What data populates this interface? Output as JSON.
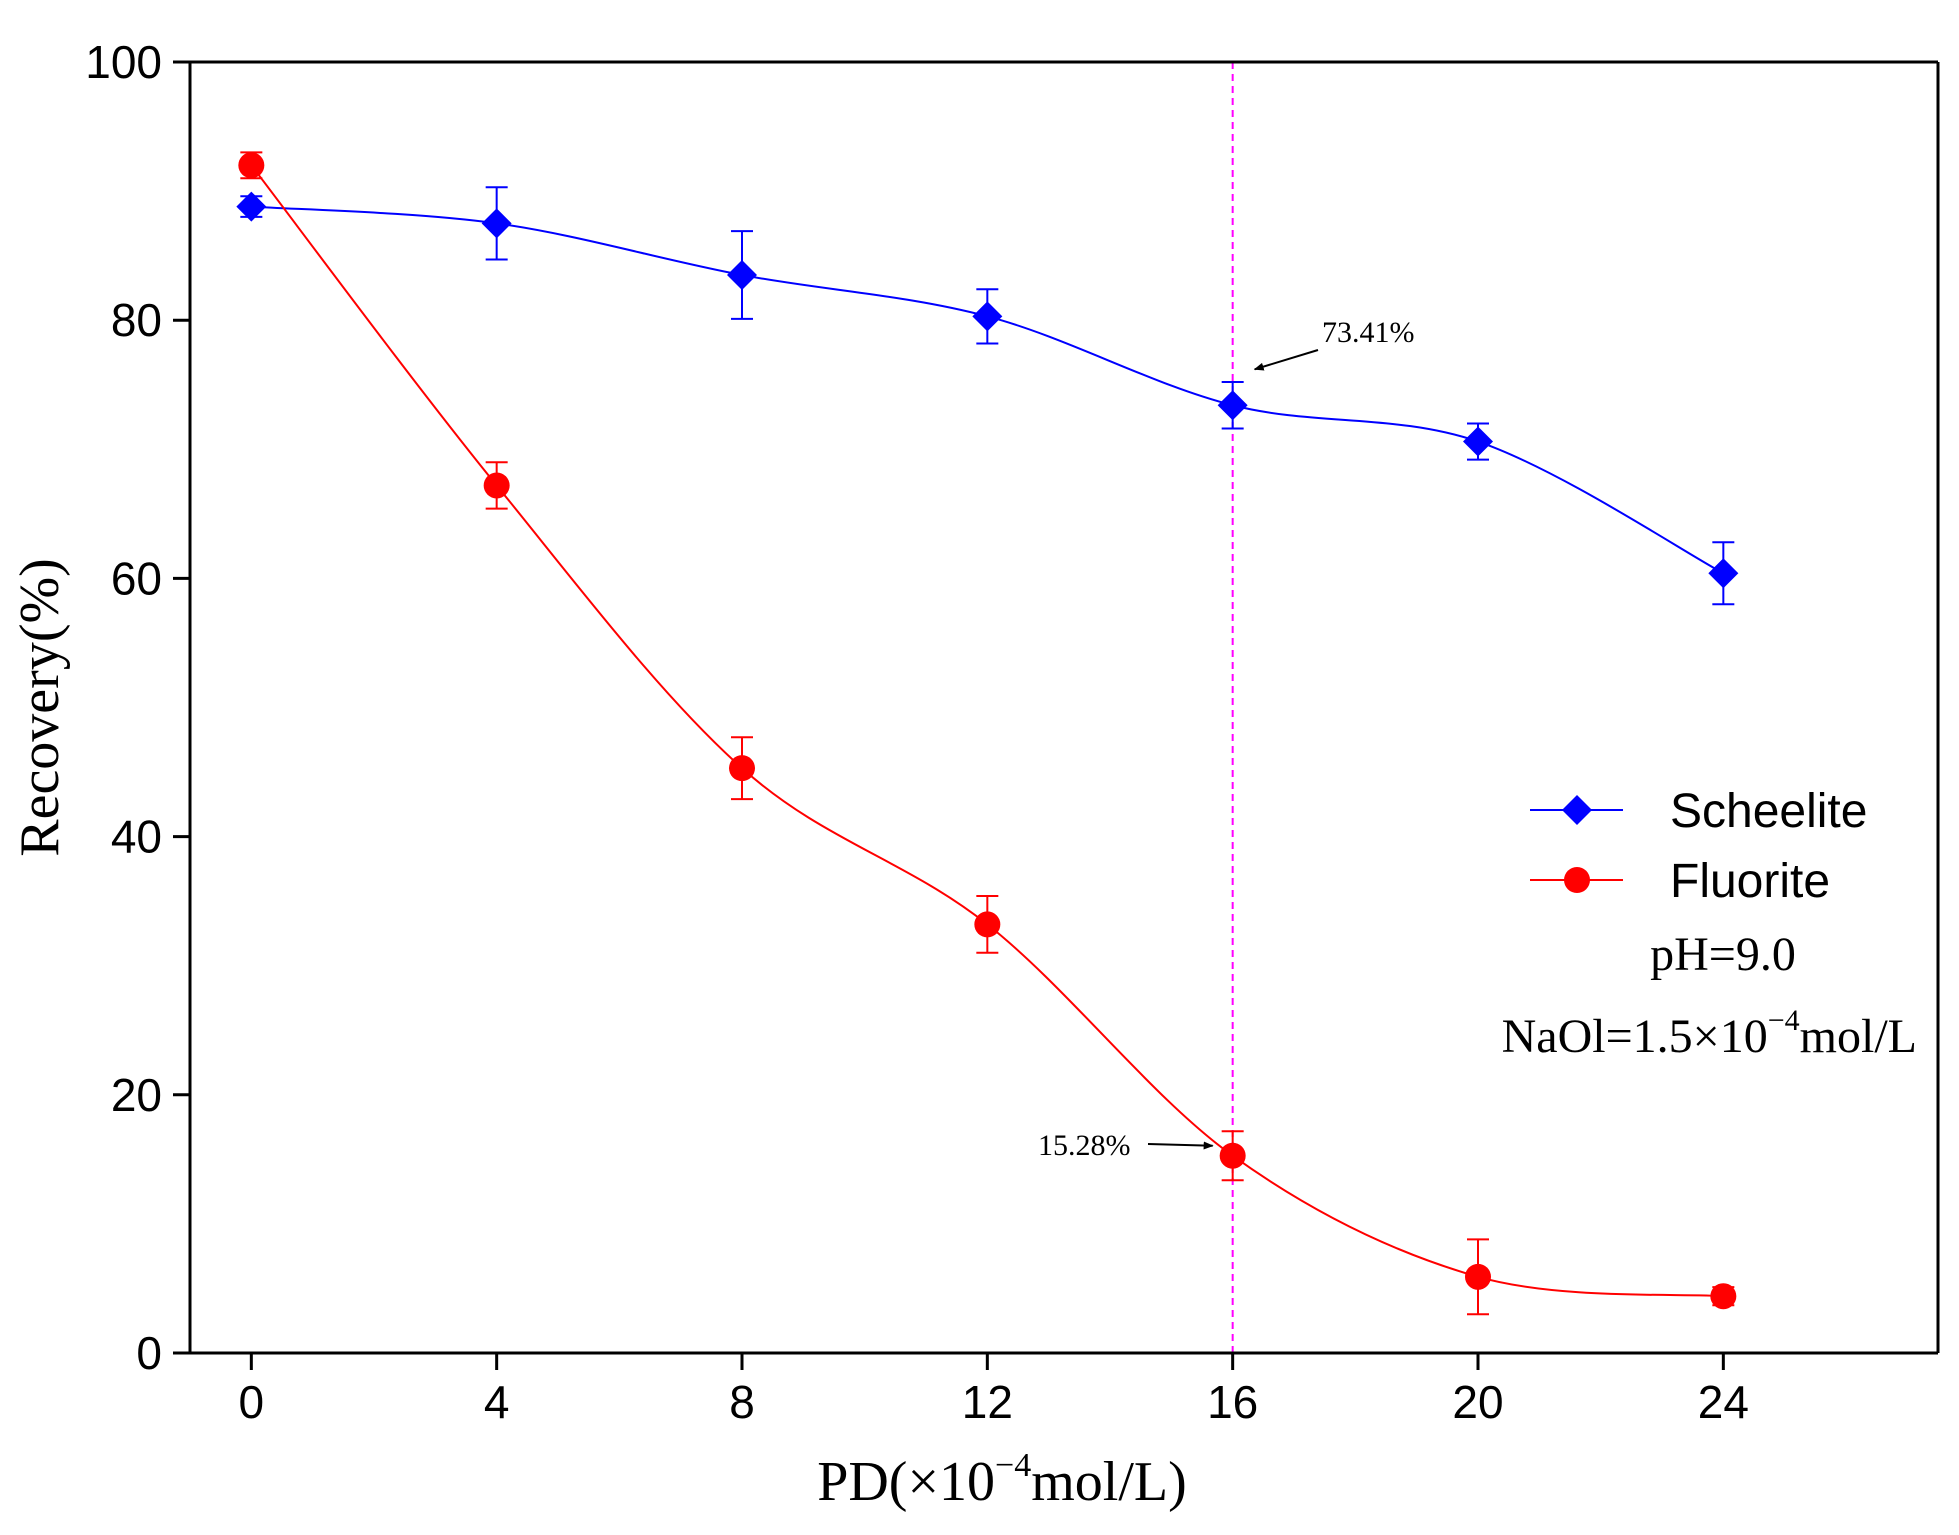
{
  "chart_data": {
    "type": "line",
    "title": "",
    "xlabel": "PD(×10⁻⁴mol/L)",
    "xlabel_parts": {
      "pre": "PD(×10",
      "sup": "−4",
      "post": "mol/L)"
    },
    "ylabel": "Recovery(%)",
    "x": [
      0,
      4,
      8,
      12,
      16,
      20,
      24
    ],
    "xlim": [
      -1,
      27.5
    ],
    "ylim": [
      0,
      100
    ],
    "xticks": [
      "0",
      "4",
      "8",
      "12",
      "16",
      "20",
      "24"
    ],
    "yticks": [
      "0",
      "20",
      "40",
      "60",
      "80",
      "100"
    ],
    "series": [
      {
        "name": "Scheelite",
        "color": "#0000ff",
        "marker": "diamond",
        "values": [
          88.8,
          87.5,
          83.5,
          80.3,
          73.41,
          70.6,
          60.4
        ],
        "errors": [
          0.8,
          2.8,
          3.4,
          2.1,
          1.8,
          1.4,
          2.4
        ]
      },
      {
        "name": "Fluorite",
        "color": "#ff0000",
        "marker": "circle",
        "values": [
          92.0,
          67.2,
          45.3,
          33.2,
          15.28,
          5.9,
          4.4
        ],
        "errors": [
          1.0,
          1.8,
          2.4,
          2.2,
          1.9,
          2.9,
          0.7
        ]
      }
    ],
    "reference_line": {
      "x": 16,
      "color": "#ff00ff",
      "style": "dashed"
    },
    "annotations": [
      {
        "text": "73.41%",
        "x": 16,
        "y": 73.41,
        "series": "Scheelite"
      },
      {
        "text": "15.28%",
        "x": 16,
        "y": 15.28,
        "series": "Fluorite"
      }
    ],
    "conditions": {
      "ph": "pH=9.0",
      "naol": {
        "pre": "NaOl=1.5×10",
        "sup": "−4",
        "post": "mol/L"
      }
    },
    "legend_position": "right",
    "grid": false
  }
}
